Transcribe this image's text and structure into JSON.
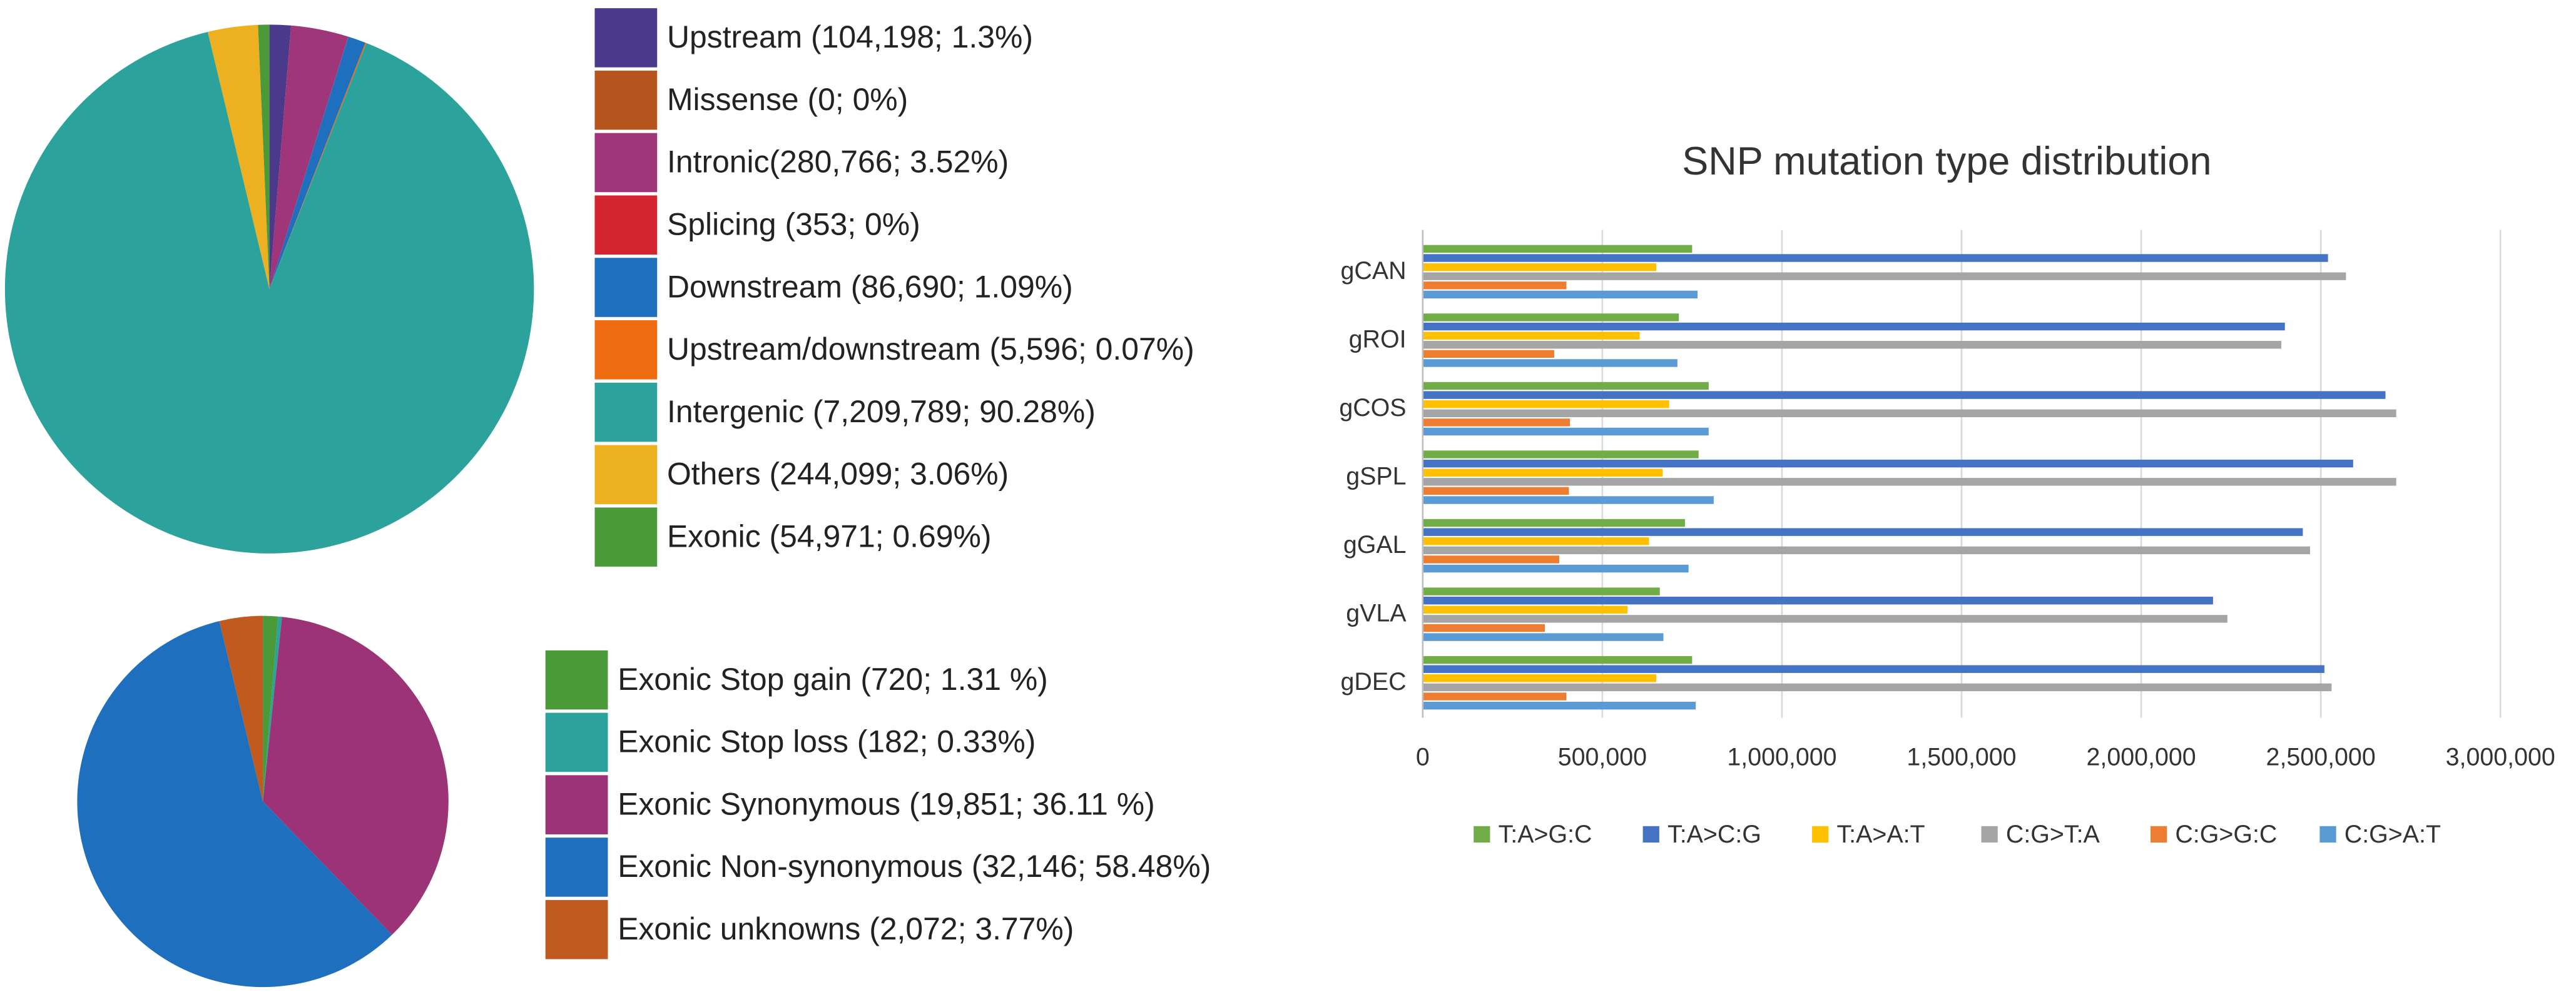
{
  "chart_data": [
    {
      "type": "pie",
      "categories": [
        "Upstream (104,198; 1.3%)",
        "Missense (0; 0%)",
        "Intronic(280,766; 3.52%)",
        "Splicing (353; 0%)",
        "Downstream (86,690; 1.09%)",
        "Upstream/downstream (5,596; 0.07%)",
        "Intergenic (7,209,789; 90.28%)",
        "Others (244,099; 3.06%)",
        "Exonic (54,971; 0.69%)"
      ],
      "values": [
        104198,
        0,
        280766,
        353,
        86690,
        5596,
        7209789,
        244099,
        54971
      ],
      "colors": [
        "#4b3a8c",
        "#b5541c",
        "#a0367a",
        "#d4242f",
        "#1f6fbf",
        "#ee6b12",
        "#2ba39c",
        "#edb020",
        "#4a9a3a"
      ],
      "legend": "right"
    },
    {
      "type": "pie",
      "categories": [
        "Exonic Stop gain (720; 1.31 %)",
        "Exonic Stop loss (182; 0.33%)",
        "Exonic Synonymous (19,851; 36.11 %)",
        "Exonic Non-synonymous (32,146; 58.48%)",
        "Exonic unknowns (2,072; 3.77%)"
      ],
      "values": [
        720,
        182,
        19851,
        32146,
        2072
      ],
      "colors": [
        "#4a9a3a",
        "#2ba39c",
        "#9c3376",
        "#1f6fbf",
        "#c05a1e"
      ],
      "legend": "right"
    },
    {
      "type": "bar",
      "orientation": "horizontal",
      "title": "SNP mutation type distribution",
      "categories": [
        "gCAN",
        "gROI",
        "gCOS",
        "gSPL",
        "gGAL",
        "gVLA",
        "gDEC"
      ],
      "series": [
        {
          "name": "T:A>G:C",
          "color": "#70ad47",
          "values": [
            750000,
            713000,
            796000,
            768000,
            730000,
            660000,
            750000
          ]
        },
        {
          "name": "T:A>C:G",
          "color": "#4472c4",
          "values": [
            2520000,
            2400000,
            2680000,
            2590000,
            2450000,
            2200000,
            2510000
          ]
        },
        {
          "name": "T:A>A:T",
          "color": "#ffc000",
          "values": [
            650000,
            604000,
            686000,
            668000,
            630000,
            570000,
            650000
          ]
        },
        {
          "name": "C:G>T:A",
          "color": "#a5a5a5",
          "values": [
            2570000,
            2390000,
            2710000,
            2710000,
            2470000,
            2240000,
            2530000
          ]
        },
        {
          "name": "C:G>G:C",
          "color": "#ed7d31",
          "values": [
            400000,
            366000,
            410000,
            407000,
            380000,
            340000,
            400000
          ]
        },
        {
          "name": "C:G>A:T",
          "color": "#5b9bd5",
          "values": [
            765000,
            709000,
            796000,
            810000,
            740000,
            670000,
            760000
          ]
        }
      ],
      "xlim": [
        0,
        3000000
      ],
      "xticks": [
        0,
        {
          "value": 500000,
          "label": "500,000"
        },
        {
          "value": 1000000,
          "label": "1,000,000"
        },
        {
          "value": 1500000,
          "label": "1,500,000"
        },
        {
          "value": 2000000,
          "label": "2,000,000"
        },
        {
          "value": 2500000,
          "label": "2,500,000"
        },
        {
          "value": 3000000,
          "label": "3,000,000"
        }
      ],
      "grid": true,
      "legend": "bottom"
    }
  ]
}
